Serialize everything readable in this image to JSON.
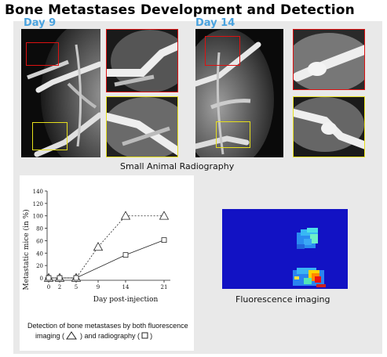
{
  "page": {
    "title": "Bone Metastases Development and Detection"
  },
  "radiography": {
    "day_left": "Day 9",
    "day_right": "Day 14",
    "caption": "Small Animal Radiography"
  },
  "fluorescence": {
    "caption": "Fluorescence imaging"
  },
  "chart_data": {
    "type": "line",
    "ylabel": "Metastatic mice (in %)",
    "xlabel": "Day post-injection",
    "ylim": [
      0,
      140
    ],
    "yticks": [
      "0",
      "20",
      "40",
      "60",
      "80",
      "100",
      "120",
      "140"
    ],
    "xticks": [
      "0",
      "2",
      "5",
      "9",
      "14",
      "21"
    ],
    "series": [
      {
        "marker": "triangle",
        "style": "dashed",
        "x": [
          0,
          2,
          5,
          9,
          14,
          21
        ],
        "values": [
          0,
          0,
          0,
          50,
          100,
          100
        ]
      },
      {
        "marker": "square",
        "style": "solid",
        "x": [
          0,
          2,
          5,
          9,
          14,
          21
        ],
        "values": [
          0,
          0,
          0,
          null,
          37,
          61
        ]
      }
    ],
    "note": {
      "line1": "Detection of bone metastases by both fluorescence",
      "line2_a": "imaging (",
      "line2_b": ") and radiography (",
      "line2_c": ")"
    }
  }
}
